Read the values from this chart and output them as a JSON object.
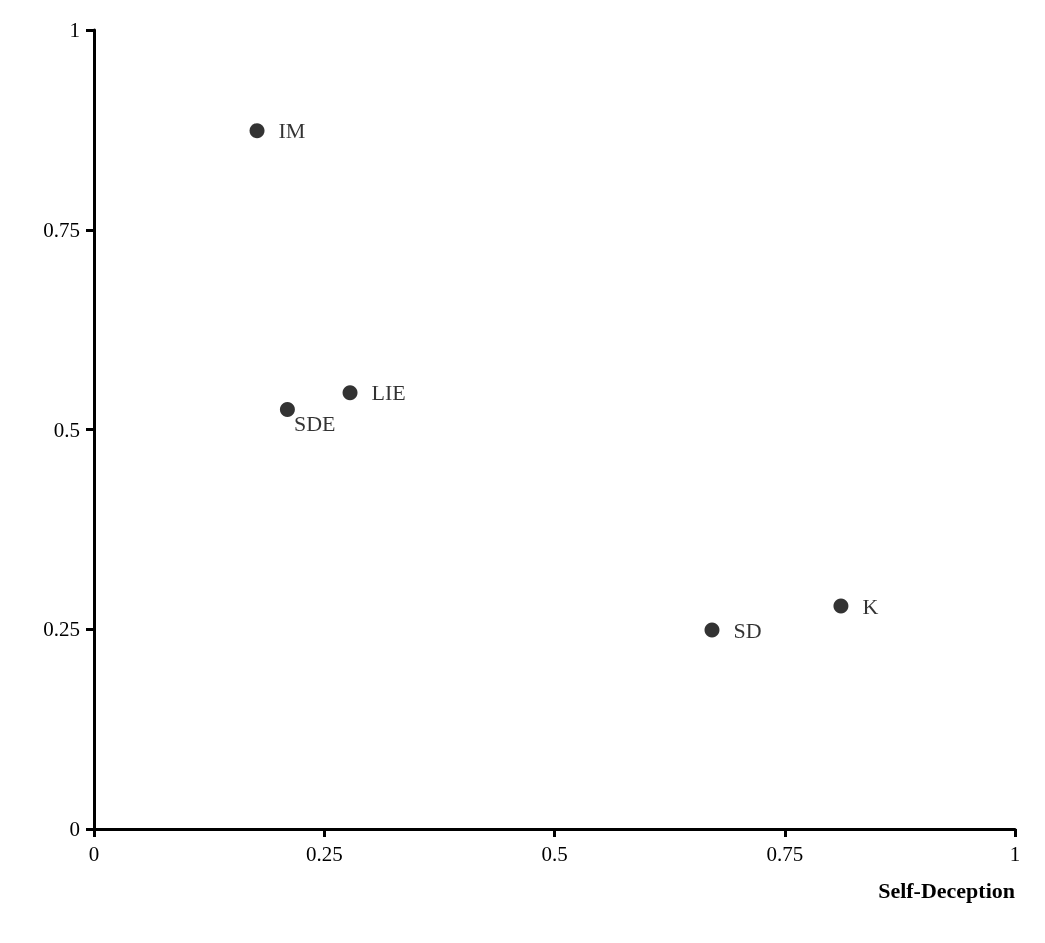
{
  "chart_data": {
    "type": "scatter",
    "xlabel": "Self-Deception",
    "xlim": [
      0,
      1
    ],
    "ylim": [
      0,
      1
    ],
    "xticks": [
      0,
      0.25,
      0.5,
      0.75,
      1
    ],
    "yticks": [
      0,
      0.25,
      0.5,
      0.75,
      1
    ],
    "grid": false,
    "legend": false,
    "marker": "circle",
    "series": [
      {
        "name": "IM",
        "color": "#000000",
        "x": [
          0.177
        ],
        "values": [
          0.874
        ]
      },
      {
        "name": "SDE",
        "color": "#000000",
        "x": [
          0.21
        ],
        "values": [
          0.525
        ]
      },
      {
        "name": "LIE",
        "color": "#000000",
        "x": [
          0.278
        ],
        "values": [
          0.546
        ]
      },
      {
        "name": "SD",
        "color": "#000000",
        "x": [
          0.671
        ],
        "values": [
          0.249
        ]
      },
      {
        "name": "K",
        "color": "#000000",
        "x": [
          0.811
        ],
        "values": [
          0.279
        ]
      }
    ]
  }
}
